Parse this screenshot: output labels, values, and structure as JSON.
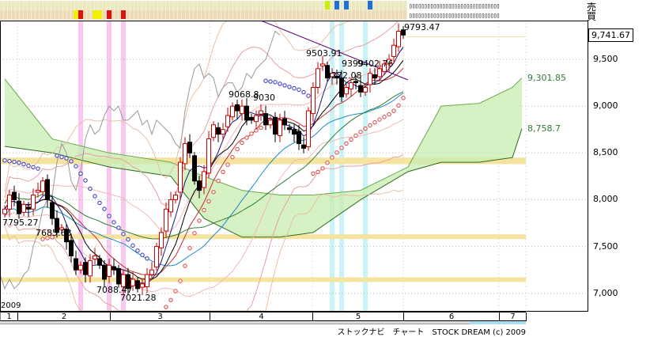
{
  "header": {
    "sell_label": "売",
    "buy_label": "買",
    "signal_glyphs": "▯▯▯▯▯▯▯▯▯▯▯▯▯▯▯▯▯▯▯▯▯▯▯▯▯▯▯▯▯▯"
  },
  "signals": {
    "row1": [
      {
        "candle": 68,
        "color": "#c8f000"
      },
      {
        "candle": 70,
        "color": "#1e6fe0"
      },
      {
        "candle": 72,
        "color": "#1e6fe0"
      },
      {
        "candle": 77,
        "color": "#1e6fe0"
      }
    ],
    "row2": [
      {
        "candle": 15,
        "color": "#f0f000"
      },
      {
        "candle": 16,
        "color": "#e01010"
      },
      {
        "candle": 19,
        "color": "#f0f000"
      },
      {
        "candle": 20,
        "color": "#f0f000"
      },
      {
        "candle": 22,
        "color": "#e01010"
      },
      {
        "candle": 25,
        "color": "#e01010"
      }
    ],
    "highlights": [
      {
        "candle": 16,
        "color": "#f8c8f0"
      },
      {
        "candle": 22,
        "color": "#f8c8f0"
      },
      {
        "candle": 25,
        "color": "#f8c8f0"
      },
      {
        "candle": 69,
        "color": "#c8f4f8"
      },
      {
        "candle": 71,
        "color": "#c8f4f8"
      },
      {
        "candle": 76,
        "color": "#c8f4f8"
      }
    ]
  },
  "chart": {
    "y_ticks": [
      "9,500",
      "9,000",
      "8,500",
      "8,000",
      "7,500",
      "7,000"
    ],
    "y_values": [
      9500,
      9000,
      8500,
      8000,
      7500,
      7000
    ],
    "current_price": "9,741.67",
    "current_value": 9741.67,
    "cloud_labels": {
      "span_a": "9,301.85",
      "span_b": "8,758.7"
    },
    "year": "2009",
    "price_labels": [
      {
        "text": "9793.47",
        "candle": 84
      },
      {
        "text": "9503.91",
        "candle": 64
      },
      {
        "text": "9399",
        "candle": 71
      },
      {
        "text": "9402.76",
        "candle": 75
      },
      {
        "text": "9272.08",
        "candle": 68
      },
      {
        "text": "9068.8",
        "candle": 47
      },
      {
        "text": "9030",
        "candle": 52
      },
      {
        "text": "7795.27",
        "candle": 0
      },
      {
        "text": "7685.68",
        "candle": 8
      },
      {
        "text": "7088.47",
        "candle": 20
      },
      {
        "text": "7021.28",
        "candle": 25
      }
    ],
    "support_bands": [
      [
        8380,
        8450
      ],
      [
        7580,
        7630
      ],
      [
        7120,
        7170
      ]
    ],
    "cloud": {
      "index": [
        0,
        10,
        22,
        35,
        42,
        50,
        58,
        65,
        75,
        85,
        92,
        100,
        107,
        109
      ],
      "span_a": [
        9290,
        8650,
        8500,
        8400,
        8250,
        8100,
        8050,
        8050,
        8100,
        8350,
        9000,
        9030,
        9200,
        9301.85
      ],
      "span_b": [
        8570,
        8500,
        8350,
        8250,
        7800,
        7600,
        7600,
        7650,
        8000,
        8300,
        8400,
        8400,
        8450,
        8758.7
      ]
    },
    "closes": [
      7900,
      8050,
      8000,
      7850,
      7950,
      7900,
      8050,
      8100,
      8200,
      8000,
      7800,
      7650,
      7700,
      7550,
      7400,
      7250,
      7300,
      7200,
      7350,
      7400,
      7300,
      7150,
      7300,
      7250,
      7100,
      7200,
      7050,
      7150,
      7050,
      7100,
      7200,
      7250,
      7500,
      7650,
      7900,
      8000,
      8050,
      8400,
      8600,
      8500,
      8200,
      8100,
      8300,
      8650,
      8800,
      8700,
      8750,
      8900,
      9000,
      8950,
      9000,
      8850,
      8850,
      8900,
      8950,
      8800,
      8850,
      8700,
      8850,
      8800,
      8750,
      8700,
      8600,
      8550,
      8950,
      9200,
      9400,
      9450,
      9300,
      9350,
      9300,
      9100,
      9200,
      9250,
      9250,
      9150,
      9200,
      9350,
      9300,
      9400,
      9450,
      9500,
      9650,
      9800,
      9760
    ]
  },
  "months": [
    {
      "label": "1"
    },
    {
      "label": "2"
    },
    {
      "label": "3"
    },
    {
      "label": "4"
    },
    {
      "label": "5"
    },
    {
      "label": "6"
    },
    {
      "label": "7"
    }
  ],
  "footer": "ストックナビ　チャート　STOCK DREAM (c) 2009"
}
